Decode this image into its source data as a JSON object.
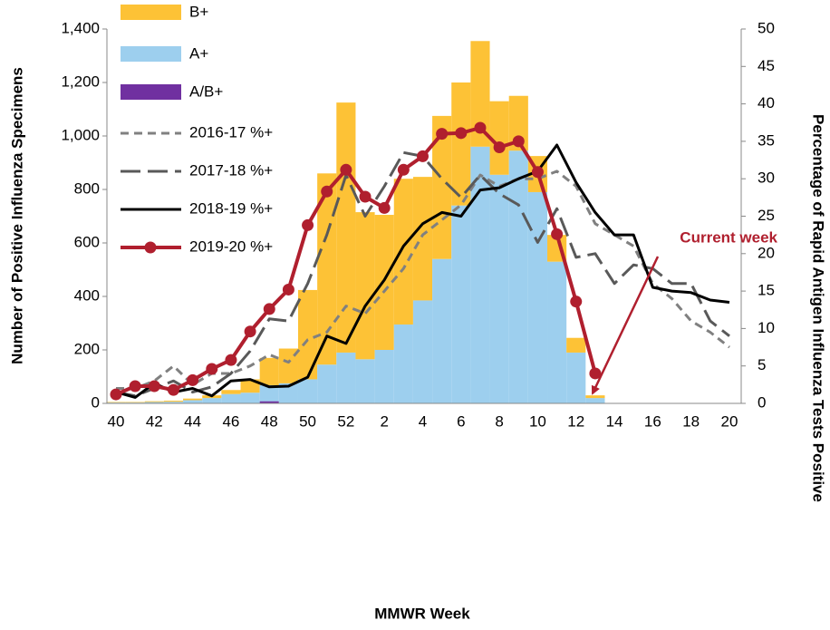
{
  "chart_data": {
    "type": "combo",
    "x_label": "MMWR Week",
    "y_label": "Number of Positive Influenza Specimens",
    "y2_label": "Percentage of Rapid Antigen Influenza Tests Positive",
    "categories": [
      "40",
      null,
      "42",
      null,
      "44",
      null,
      "46",
      null,
      "48",
      null,
      "50",
      null,
      "52",
      null,
      "2",
      null,
      "4",
      null,
      "6",
      null,
      "8",
      null,
      "10",
      null,
      "12",
      null,
      "14",
      null,
      "16",
      null,
      "18",
      null,
      "20"
    ],
    "ylim": [
      0,
      1400
    ],
    "yticks": [
      0,
      200,
      400,
      600,
      800,
      {
        "value": 1000,
        "label": "1,000"
      },
      {
        "value": 1200,
        "label": "1,200"
      },
      {
        "value": 1400,
        "label": "1,400"
      }
    ],
    "y2lim": [
      0,
      50
    ],
    "y2ticks": [
      0,
      5,
      10,
      15,
      20,
      25,
      30,
      35,
      40,
      45,
      50
    ],
    "stacked": true,
    "series": [
      {
        "name": "B+",
        "type": "bar",
        "color": "#fdc236",
        "values": [
          2,
          2,
          3,
          4,
          6,
          10,
          15,
          50,
          102,
          130,
          334,
          715,
          935,
          550,
          505,
          545,
          462,
          535,
          460,
          395,
          275,
          205,
          135,
          100,
          55,
          10,
          null,
          null,
          null,
          null,
          null,
          null,
          null
        ]
      },
      {
        "name": "A+",
        "type": "bar",
        "color": "#9dcfee",
        "values": [
          3,
          3,
          5,
          6,
          12,
          20,
          35,
          40,
          60,
          75,
          90,
          145,
          190,
          165,
          200,
          295,
          385,
          540,
          740,
          960,
          855,
          945,
          790,
          530,
          190,
          20,
          null,
          null,
          null,
          null,
          null,
          null,
          null
        ]
      },
      {
        "name": "A/B+",
        "type": "bar",
        "color": "#7030a0",
        "values": [
          0,
          0,
          0,
          0,
          0,
          0,
          0,
          0,
          8,
          0,
          0,
          0,
          0,
          0,
          0,
          0,
          0,
          0,
          0,
          0,
          0,
          0,
          0,
          0,
          0,
          0,
          null,
          null,
          null,
          null,
          null,
          null,
          null
        ]
      },
      {
        "name": "2016-17 %+",
        "type": "line",
        "axis": "y2",
        "color": "#808080",
        "dash": "short",
        "values": [
          2.0,
          2.0,
          3.0,
          5.0,
          2.5,
          4.0,
          4.0,
          5.0,
          6.5,
          5.5,
          8.5,
          9.5,
          13.0,
          12.0,
          15.0,
          18.0,
          22.5,
          24.5,
          26.5,
          30.5,
          29.0,
          30.0,
          30.0,
          31.0,
          29.0,
          24.0,
          22.5,
          21.0,
          16.0,
          14.0,
          11.0,
          9.5,
          7.5
        ]
      },
      {
        "name": "2017-18 %+",
        "type": "line",
        "axis": "y2",
        "color": "#595959",
        "dash": "long",
        "values": [
          1.5,
          1.0,
          2.0,
          3.0,
          1.5,
          2.2,
          4.0,
          7.0,
          11.3,
          11.0,
          16.0,
          22.5,
          30.5,
          25.0,
          29.0,
          33.5,
          33.0,
          30.0,
          27.5,
          30.5,
          28.0,
          26.5,
          21.5,
          26.0,
          19.5,
          20.0,
          16.0,
          18.5,
          18.0,
          16.0,
          16.0,
          11.0,
          9.0
        ]
      },
      {
        "name": "2018-19 %+",
        "type": "line",
        "axis": "y2",
        "color": "#000000",
        "dash": "solid",
        "values": [
          1.5,
          0.8,
          2.7,
          1.5,
          2.0,
          1.0,
          3.0,
          3.2,
          2.2,
          2.3,
          3.5,
          9.0,
          8.0,
          13.0,
          16.5,
          21.0,
          24.0,
          25.5,
          25.0,
          28.5,
          28.8,
          30.0,
          31.0,
          34.5,
          29.5,
          25.5,
          22.5,
          22.5,
          15.5,
          15.0,
          14.8,
          13.8,
          13.5
        ]
      },
      {
        "name": "2019-20 %+",
        "type": "line",
        "axis": "y2",
        "color": "#b01f2e",
        "dash": "solid",
        "marker": "circle",
        "values": [
          1.2,
          2.3,
          2.3,
          1.8,
          3.1,
          4.6,
          5.8,
          9.6,
          12.6,
          15.2,
          23.8,
          28.3,
          31.2,
          27.6,
          26.1,
          31.2,
          33.0,
          36.0,
          36.1,
          36.8,
          34.2,
          35.0,
          30.9,
          22.6,
          13.6,
          4.0,
          null,
          null,
          null,
          null,
          null,
          null,
          null
        ]
      }
    ],
    "annotations": [
      {
        "text": "Current week",
        "color": "#b01f2e"
      }
    ]
  }
}
